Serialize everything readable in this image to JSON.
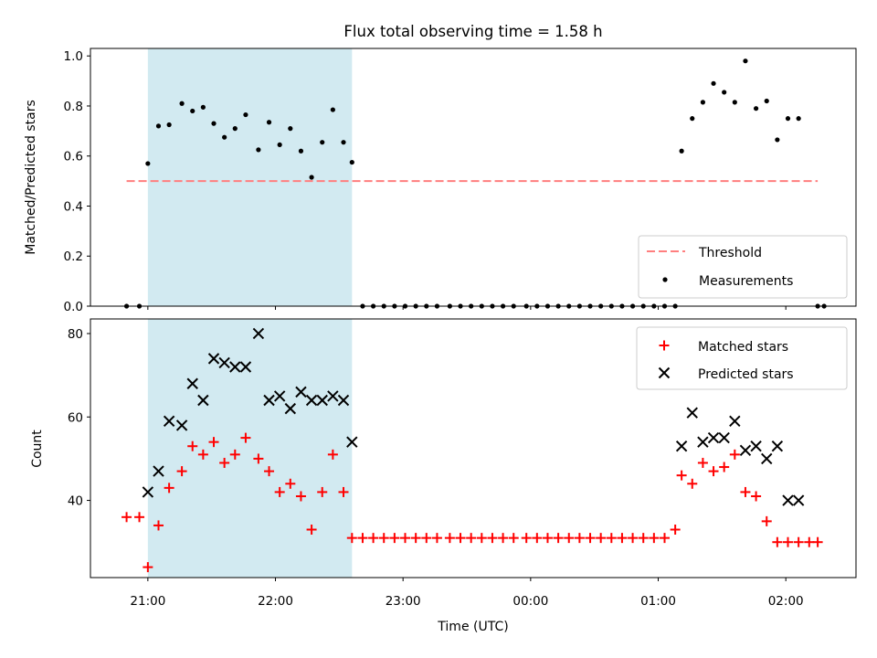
{
  "title": "Flux total observing time = 1.58 h",
  "xlabel": "Time (UTC)",
  "x_tick_labels": [
    "21:00",
    "22:00",
    "23:00",
    "00:00",
    "01:00",
    "02:00"
  ],
  "colors": {
    "threshold": "#ff7f7f",
    "highlight": "#add8e6",
    "matched": "#ff0000",
    "predicted": "#000000",
    "measurements": "#000000"
  },
  "chart_data": [
    {
      "type": "scatter",
      "panel": "top",
      "ylabel": "Matched/Predicted stars",
      "ylim": [
        0,
        1.03
      ],
      "yticks": [
        "0.0",
        "0.2",
        "0.4",
        "0.6",
        "0.8",
        "1.0"
      ],
      "xlim": [
        "20:33",
        "02:33"
      ],
      "x_unit": "time of day (UTC)",
      "highlight": {
        "start": "21:00",
        "end": "22:36"
      },
      "threshold": {
        "name": "Threshold",
        "value": 0.5,
        "start": "20:50",
        "end": "02:15"
      },
      "legend": {
        "position": "lower right",
        "entries": [
          "Threshold",
          "Measurements"
        ]
      },
      "series": [
        {
          "name": "Measurements",
          "x": [
            "20:50",
            "20:56",
            "21:00",
            "21:05",
            "21:10",
            "21:16",
            "21:21",
            "21:26",
            "21:31",
            "21:36",
            "21:41",
            "21:46",
            "21:52",
            "21:57",
            "22:02",
            "22:07",
            "22:12",
            "22:17",
            "22:22",
            "22:27",
            "22:32",
            "22:36",
            "22:41",
            "22:46",
            "22:51",
            "22:56",
            "23:01",
            "23:06",
            "23:11",
            "23:16",
            "23:22",
            "23:27",
            "23:32",
            "23:37",
            "23:42",
            "23:47",
            "23:52",
            "23:58",
            "00:03",
            "00:08",
            "00:13",
            "00:18",
            "00:23",
            "00:28",
            "00:33",
            "00:38",
            "00:43",
            "00:48",
            "00:53",
            "00:58",
            "01:03",
            "01:08",
            "01:11",
            "01:16",
            "01:21",
            "01:26",
            "01:31",
            "01:36",
            "01:41",
            "01:46",
            "01:51",
            "01:56",
            "02:01",
            "02:06",
            "02:15",
            "02:18"
          ],
          "y": [
            0,
            0,
            0.57,
            0.72,
            0.725,
            0.81,
            0.78,
            0.795,
            0.73,
            0.675,
            0.71,
            0.765,
            0.625,
            0.735,
            0.645,
            0.71,
            0.62,
            0.515,
            0.655,
            0.785,
            0.655,
            0.575,
            0,
            0,
            0,
            0,
            0,
            0,
            0,
            0,
            0,
            0,
            0,
            0,
            0,
            0,
            0,
            0,
            0,
            0,
            0,
            0,
            0,
            0,
            0,
            0,
            0,
            0,
            0,
            0,
            0,
            0,
            0.62,
            0.75,
            0.815,
            0.89,
            0.855,
            0.815,
            0.98,
            0.79,
            0.82,
            0.665,
            0.75,
            0.75,
            0,
            0
          ]
        }
      ]
    },
    {
      "type": "scatter",
      "panel": "bottom",
      "ylabel": "Count",
      "ylim": [
        21.5,
        83.5
      ],
      "yticks": [
        "40",
        "60",
        "80"
      ],
      "xlim": [
        "20:33",
        "02:33"
      ],
      "x_unit": "time of day (UTC)",
      "highlight": {
        "start": "21:00",
        "end": "22:36"
      },
      "legend": {
        "position": "upper right",
        "entries": [
          "Matched stars",
          "Predicted stars"
        ]
      },
      "series": [
        {
          "name": "Matched stars",
          "marker": "+",
          "x": [
            "20:50",
            "20:56",
            "21:00",
            "21:05",
            "21:10",
            "21:16",
            "21:21",
            "21:26",
            "21:31",
            "21:36",
            "21:41",
            "21:46",
            "21:52",
            "21:57",
            "22:02",
            "22:07",
            "22:12",
            "22:17",
            "22:22",
            "22:27",
            "22:32",
            "22:36",
            "22:41",
            "22:46",
            "22:51",
            "22:56",
            "23:01",
            "23:06",
            "23:11",
            "23:16",
            "23:22",
            "23:27",
            "23:32",
            "23:37",
            "23:42",
            "23:47",
            "23:52",
            "23:58",
            "00:03",
            "00:08",
            "00:13",
            "00:18",
            "00:23",
            "00:28",
            "00:33",
            "00:38",
            "00:43",
            "00:48",
            "00:53",
            "00:58",
            "01:03",
            "01:08",
            "01:11",
            "01:16",
            "01:21",
            "01:26",
            "01:31",
            "01:36",
            "01:41",
            "01:46",
            "01:51",
            "01:56",
            "02:01",
            "02:06",
            "02:11",
            "02:15"
          ],
          "y": [
            36,
            36,
            24,
            34,
            43,
            47,
            53,
            51,
            54,
            49,
            51,
            55,
            50,
            47,
            42,
            44,
            41,
            33,
            42,
            51,
            42,
            31,
            31,
            31,
            31,
            31,
            31,
            31,
            31,
            31,
            31,
            31,
            31,
            31,
            31,
            31,
            31,
            31,
            31,
            31,
            31,
            31,
            31,
            31,
            31,
            31,
            31,
            31,
            31,
            31,
            31,
            33,
            46,
            44,
            49,
            47,
            48,
            51,
            42,
            41,
            35,
            30,
            30,
            30,
            30,
            30
          ]
        },
        {
          "name": "Predicted stars",
          "marker": "x",
          "x": [
            "21:00",
            "21:05",
            "21:10",
            "21:16",
            "21:21",
            "21:26",
            "21:31",
            "21:36",
            "21:41",
            "21:46",
            "21:52",
            "21:57",
            "22:02",
            "22:07",
            "22:12",
            "22:17",
            "22:22",
            "22:27",
            "22:32",
            "22:36",
            "01:11",
            "01:16",
            "01:21",
            "01:26",
            "01:31",
            "01:36",
            "01:41",
            "01:46",
            "01:51",
            "01:56",
            "02:01",
            "02:06",
            "02:11"
          ],
          "y": [
            42,
            47,
            59,
            58,
            68,
            64,
            74,
            73,
            72,
            72,
            80,
            64,
            65,
            62,
            66,
            64,
            64,
            65,
            64,
            54,
            53,
            61,
            54,
            55,
            55,
            59,
            52,
            53,
            50,
            53,
            40,
            40,
            null
          ]
        }
      ]
    }
  ]
}
